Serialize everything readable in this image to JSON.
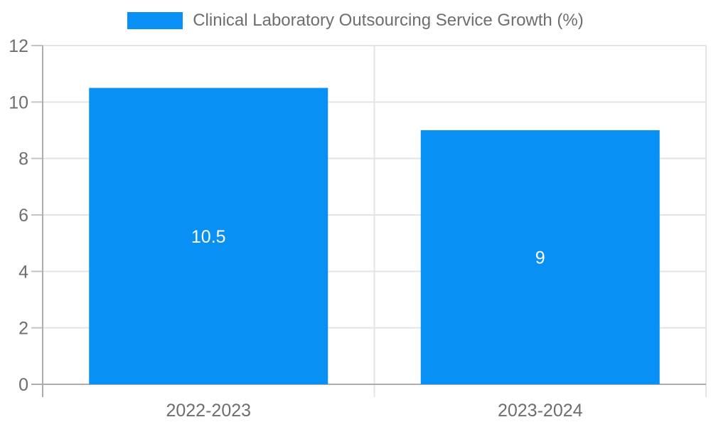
{
  "chart_data": {
    "type": "bar",
    "title": "Clinical Laboratory Outsourcing Service Growth (%)",
    "categories": [
      "2022-2023",
      "2023-2024"
    ],
    "series": [
      {
        "name": "Clinical Laboratory Outsourcing Service Growth (%)",
        "values": [
          10.5,
          9
        ]
      }
    ],
    "value_labels": [
      "10.5",
      "9"
    ],
    "xlabel": "",
    "ylabel": "",
    "ylim": [
      0,
      12
    ],
    "yticks": [
      "0",
      "2",
      "4",
      "6",
      "8",
      "10",
      "12"
    ],
    "grid": true,
    "legend_position": "top-center"
  },
  "colors": {
    "bar": "#0890f5",
    "text": "#6e6e6e",
    "value_label": "#ffffff",
    "grid": "#e4e4e4",
    "axis": "#adadad",
    "tick": "#c4c4c4",
    "background": "#ffffff"
  }
}
